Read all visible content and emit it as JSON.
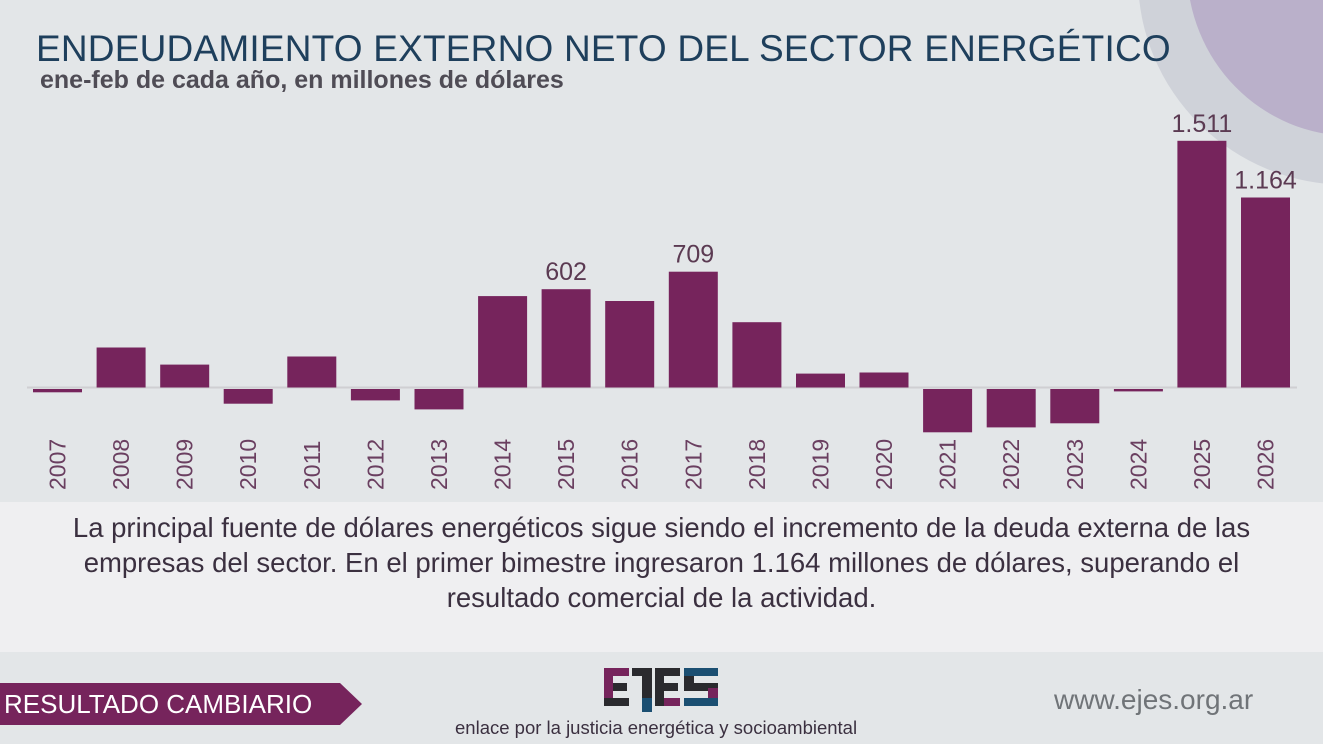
{
  "header": {
    "title": "ENDEUDAMIENTO EXTERNO NETO DEL SECTOR ENERGÉTICO",
    "subtitle": "ene-feb de cada año, en millones de dólares"
  },
  "chart_data": {
    "type": "bar",
    "title": "ENDEUDAMIENTO EXTERNO NETO DEL SECTOR ENERGÉTICO",
    "subtitle": "ene-feb de cada año, en millones de dólares",
    "xlabel": "",
    "ylabel": "millones de dólares",
    "categories": [
      "2007",
      "2008",
      "2009",
      "2010",
      "2011",
      "2012",
      "2013",
      "2014",
      "2015",
      "2016",
      "2017",
      "2018",
      "2019",
      "2020",
      "2021",
      "2022",
      "2023",
      "2024",
      "2025",
      "2026"
    ],
    "values": [
      -20,
      245,
      140,
      -90,
      190,
      -70,
      -125,
      560,
      602,
      530,
      709,
      400,
      85,
      92,
      -265,
      -235,
      -210,
      -15,
      1511,
      1164
    ],
    "data_labels": {
      "2015": "602",
      "2017": "709",
      "2025": "1.511",
      "2026": "1.164"
    },
    "ylim": [
      -290,
      1600
    ],
    "grid": false,
    "legend": "none",
    "bar_color": "#76245c"
  },
  "note": {
    "text": "La principal fuente de dólares energéticos sigue siendo el incremento de la deuda externa de las empresas del sector. En el primer bimestre ingresaron 1.164 millones de dólares, superando el resultado comercial de la actividad."
  },
  "footer": {
    "section_label": "RESULTADO CAMBIARIO",
    "logo_text": "EJES",
    "tagline": "enlace por la justicia energética y socioambiental",
    "website": "www.ejes.org.ar"
  },
  "colors": {
    "accent": "#76245c",
    "title": "#1e3f5c",
    "logo_blue": "#1b4f72",
    "logo_dark": "#2a2a2e"
  }
}
